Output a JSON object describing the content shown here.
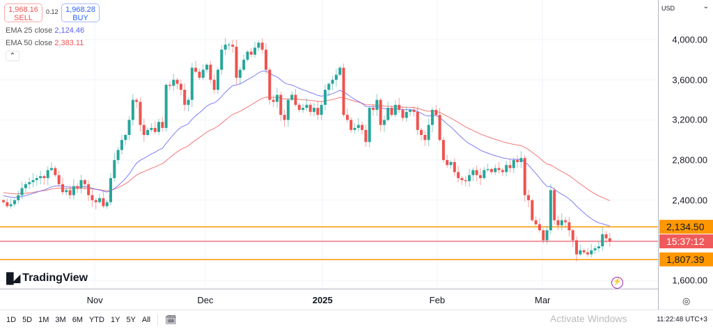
{
  "trade": {
    "sell_price": "1,968.16",
    "sell_label": "SELL",
    "spread": "0.12",
    "buy_price": "1,968.28",
    "buy_label": "BUY"
  },
  "indicators": [
    {
      "label": "EMA 25 close",
      "value": "2,124.46",
      "color": "#5b5bf5"
    },
    {
      "label": "EMA 50 close",
      "value": "2,383.11",
      "color": "#f05454"
    }
  ],
  "collapse_icon": "chevron-up-icon",
  "brand": "TradingView",
  "currency": "USD",
  "colors": {
    "up": "#26a69a",
    "down": "#ef5350",
    "level": "#ff9800",
    "current": "#f23645"
  },
  "chart_data": {
    "type": "candlestick",
    "y_ticks": [
      "4,000.00",
      "3,600.00",
      "3,200.00",
      "2,800.00",
      "2,400.00",
      "1,600.00"
    ],
    "y_tick_values": [
      4000,
      3600,
      3200,
      2800,
      2400,
      1600
    ],
    "ylim": [
      1480,
      4280
    ],
    "x_ticks": [
      {
        "label": "Nov",
        "index": 24.7,
        "bold": false
      },
      {
        "label": "Dec",
        "index": 54.6,
        "bold": false
      },
      {
        "label": "2025",
        "index": 86.3,
        "bold": true
      },
      {
        "label": "Feb",
        "index": 117.3,
        "bold": false
      },
      {
        "label": "Mar",
        "index": 145.8,
        "bold": false
      }
    ],
    "closes": [
      2380,
      2340,
      2360,
      2400,
      2450,
      2520,
      2560,
      2580,
      2600,
      2620,
      2640,
      2620,
      2700,
      2720,
      2650,
      2560,
      2480,
      2500,
      2450,
      2540,
      2520,
      2600,
      2560,
      2450,
      2400,
      2380,
      2420,
      2340,
      2380,
      2620,
      2800,
      2900,
      3000,
      3050,
      3200,
      3400,
      3380,
      3150,
      3050,
      3100,
      3120,
      3080,
      3180,
      3120,
      3550,
      3540,
      3600,
      3560,
      3500,
      3350,
      3400,
      3720,
      3680,
      3620,
      3700,
      3750,
      3600,
      3500,
      3700,
      3900,
      3950,
      3950,
      3930,
      3620,
      3700,
      3800,
      3880,
      3850,
      3920,
      3970,
      3900,
      3700,
      3400,
      3380,
      3450,
      3250,
      3200,
      3400,
      3450,
      3350,
      3300,
      3320,
      3350,
      3280,
      3320,
      3250,
      3350,
      3500,
      3560,
      3600,
      3650,
      3720,
      3250,
      3200,
      3100,
      3120,
      3150,
      3100,
      2980,
      3320,
      3300,
      3400,
      3150,
      3200,
      3320,
      3250,
      3350,
      3300,
      3220,
      3280,
      3300,
      3280,
      3100,
      3050,
      3000,
      3150,
      3300,
      3250,
      3000,
      2800,
      2750,
      2780,
      2680,
      2620,
      2600,
      2590,
      2650,
      2700,
      2650,
      2620,
      2700,
      2710,
      2680,
      2720,
      2700,
      2680,
      2750,
      2720,
      2800,
      2780,
      2820,
      2450,
      2400,
      2200,
      2160,
      2100,
      2000,
      2100,
      2500,
      2200,
      2150,
      2200,
      2180,
      2100,
      2000,
      1860,
      1900,
      1880,
      1860,
      1900,
      1920,
      1940,
      2060,
      2020,
      1990
    ],
    "levels": [
      {
        "value": 2134.5,
        "label": "2,134.50"
      },
      {
        "value": 1807.39,
        "label": "1,807.39"
      }
    ],
    "countdown": "15:37:12"
  },
  "range_buttons": [
    "1D",
    "5D",
    "1M",
    "3M",
    "6M",
    "YTD",
    "1Y",
    "5Y",
    "All"
  ],
  "calendar_icon": "calendar-range-icon",
  "clock": "11:22:48 UTC+3",
  "watermark": "Activate Windows"
}
